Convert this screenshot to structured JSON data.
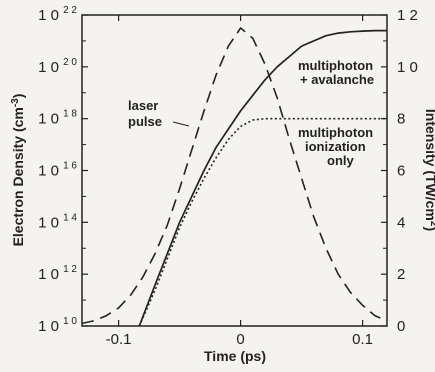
{
  "chart_data": {
    "type": "line",
    "xlabel": "Time (ps)",
    "ylabel_left": "Electron Density (cm",
    "ylabel_left_unit_exp": "-3",
    "ylabel_left_close": ")",
    "ylabel_right": "Intensity (TW/cm",
    "ylabel_right_unit_exp": "2",
    "ylabel_right_close": ")",
    "xlim": [
      -0.13,
      0.12
    ],
    "ylim_left_log10": [
      10,
      22
    ],
    "ylim_right": [
      0,
      12
    ],
    "x_ticks": [
      {
        "value": -0.1,
        "label": "-0.1"
      },
      {
        "value": 0,
        "label": "0"
      },
      {
        "value": 0.1,
        "label": "0.1"
      }
    ],
    "left_ticks": [
      {
        "value": 10,
        "base": "1 0",
        "exp": "1 0"
      },
      {
        "value": 12,
        "base": "1 0",
        "exp": "1 2"
      },
      {
        "value": 14,
        "base": "1 0",
        "exp": "1 4"
      },
      {
        "value": 16,
        "base": "1 0",
        "exp": "1 6"
      },
      {
        "value": 18,
        "base": "1 0",
        "exp": "1 8"
      },
      {
        "value": 20,
        "base": "1 0",
        "exp": "2 0"
      },
      {
        "value": 22,
        "base": "1 0",
        "exp": "2 2"
      }
    ],
    "right_ticks": [
      {
        "value": 0,
        "label": "0"
      },
      {
        "value": 2,
        "label": "2"
      },
      {
        "value": 4,
        "label": "4"
      },
      {
        "value": 6,
        "label": "6"
      },
      {
        "value": 8,
        "label": "8"
      },
      {
        "value": 10,
        "label": "1 0"
      },
      {
        "value": 12,
        "label": "1 2"
      }
    ],
    "series": [
      {
        "name": "laser pulse",
        "axis": "right",
        "style": "dashed",
        "x": [
          -0.13,
          -0.12,
          -0.11,
          -0.1,
          -0.09,
          -0.08,
          -0.07,
          -0.06,
          -0.05,
          -0.04,
          -0.03,
          -0.02,
          -0.01,
          0,
          0.01,
          0.02,
          0.03,
          0.04,
          0.05,
          0.06,
          0.07,
          0.08,
          0.09,
          0.1,
          0.11,
          0.12
        ],
        "y": [
          0.1,
          0.2,
          0.4,
          0.7,
          1.2,
          1.9,
          2.8,
          3.9,
          5.3,
          6.8,
          8.3,
          9.7,
          10.8,
          11.5,
          11.1,
          10.1,
          8.8,
          7.2,
          5.7,
          4.2,
          3.0,
          2.0,
          1.3,
          0.8,
          0.4,
          0.2
        ]
      },
      {
        "name": "multiphoton + avalanche",
        "axis": "left",
        "style": "solid",
        "x": [
          -0.083,
          -0.07,
          -0.06,
          -0.05,
          -0.04,
          -0.03,
          -0.02,
          -0.01,
          0,
          0.01,
          0.02,
          0.03,
          0.04,
          0.05,
          0.06,
          0.07,
          0.08,
          0.09,
          0.1,
          0.11,
          0.12
        ],
        "y": [
          10.0,
          11.6,
          12.8,
          14.0,
          15.0,
          16.0,
          16.9,
          17.6,
          18.3,
          18.9,
          19.5,
          20.0,
          20.4,
          20.8,
          21.0,
          21.2,
          21.3,
          21.35,
          21.38,
          21.4,
          21.4
        ]
      },
      {
        "name": "multiphoton ionization only",
        "axis": "left",
        "style": "dotted",
        "x": [
          -0.083,
          -0.07,
          -0.06,
          -0.05,
          -0.04,
          -0.03,
          -0.02,
          -0.01,
          0,
          0.01,
          0.02,
          0.03,
          0.04,
          0.06,
          0.08,
          0.1,
          0.12
        ],
        "y": [
          10.0,
          11.4,
          12.6,
          13.8,
          14.8,
          15.7,
          16.5,
          17.2,
          17.7,
          17.95,
          18.0,
          18.0,
          18.0,
          18.0,
          18.0,
          18.0,
          18.0
        ]
      }
    ],
    "annotations": {
      "laser_pulse": [
        "laser",
        "pulse"
      ],
      "multiphoton_avalanche": [
        "multiphoton",
        "+ avalanche"
      ],
      "multiphoton_only": [
        "multiphoton",
        "ionization",
        "only"
      ]
    }
  }
}
